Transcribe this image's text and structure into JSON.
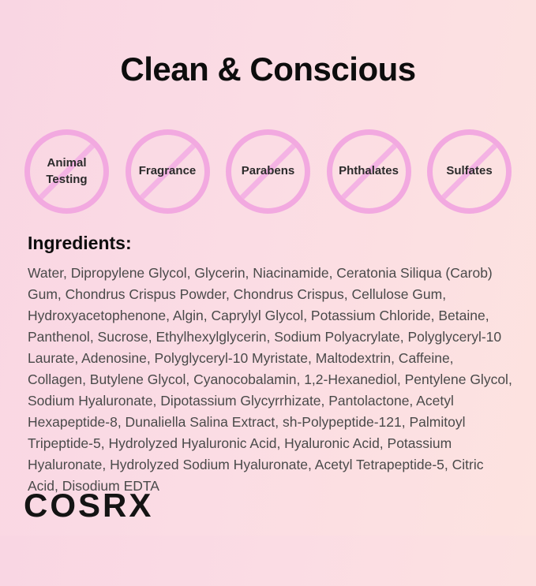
{
  "page": {
    "title": "Clean & Conscious"
  },
  "badges": {
    "items": [
      {
        "label": "Animal Testing",
        "icon": "prohibition-icon"
      },
      {
        "label": "Fragrance",
        "icon": "prohibition-icon"
      },
      {
        "label": "Parabens",
        "icon": "prohibition-icon"
      },
      {
        "label": "Phthalates",
        "icon": "prohibition-icon"
      },
      {
        "label": "Sulfates",
        "icon": "prohibition-icon"
      }
    ]
  },
  "ingredients": {
    "heading": "Ingredients:",
    "text": "Water, Dipropylene Glycol, Glycerin, Niacinamide, Ceratonia Siliqua (Carob) Gum, Chondrus Crispus Powder, Chondrus Crispus, Cellulose Gum, Hydroxyacetophenone, Algin, Caprylyl Glycol, Potassium Chloride, Betaine, Panthenol, Sucrose, Ethylhexylglycerin, Sodium Polyacrylate, Polyglyceryl-10 Laurate, Adenosine, Polyglyceryl-10 Myristate, Maltodextrin, Caffeine, Collagen, Butylene Glycol, Cyanocobalamin, 1,2-Hexanediol, Pentylene Glycol, Sodium Hyaluronate, Dipotassium Glycyrrhizate, Pantolactone, Acetyl Hexapeptide-8, Dunaliella Salina Extract, sh-Polypeptide-121, Palmitoyl Tripeptide-5, Hydrolyzed Hyaluronic Acid, Hyaluronic Acid, Potassium Hyaluronate, Hydrolyzed Sodium Hyaluronate, Acetyl Tetrapeptide-5, Citric Acid, Disodium EDTA"
  },
  "brand": {
    "logo_text": "COSRX"
  },
  "colors": {
    "background_left": "#f9d6e3",
    "background_right": "#fde3e0",
    "prohibition_ring": "#f2a9e0",
    "prohibition_slash": "#f4b3e4",
    "title_text": "#0d0d0d",
    "body_text": "#4a4a4a",
    "badge_label_text": "#2b2b2b"
  }
}
